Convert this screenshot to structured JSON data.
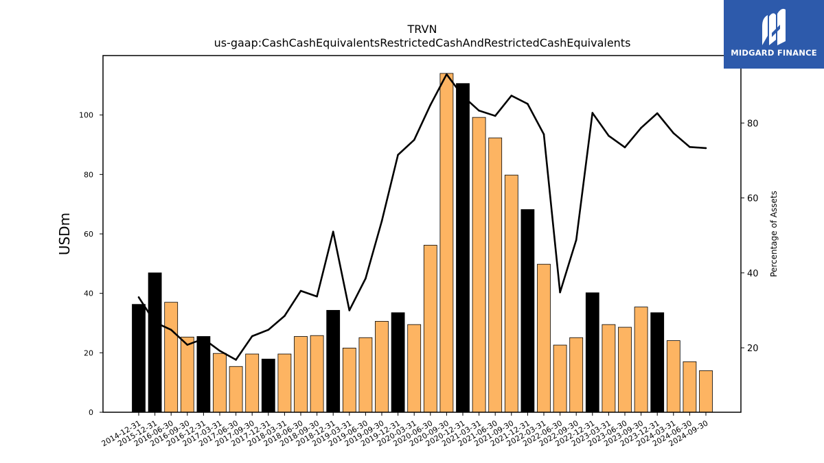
{
  "logo": {
    "text": "MIDGARD FINANCE",
    "icon": "midgard-m-icon",
    "bg_color": "#2d5aab"
  },
  "chart_data": {
    "type": "bar",
    "title": "TRVN",
    "subtitle": "us-gaap:CashCashEquivalentsRestrictedCashAndRestrictedCashEquivalents",
    "ylabel": "USDm",
    "ylabel_right": "Percentage of Assets",
    "ylim": [
      0,
      120
    ],
    "yticks": [
      0,
      20,
      40,
      60,
      80,
      100
    ],
    "ylim_right": [
      2.8,
      98
    ],
    "yticks_right": [
      20,
      40,
      60,
      80
    ],
    "categories": [
      "2014-12-31",
      "2015-12-31",
      "2016-06-30",
      "2016-09-30",
      "2016-12-31",
      "2017-03-31",
      "2017-06-30",
      "2017-09-30",
      "2017-12-31",
      "2018-03-31",
      "2018-06-30",
      "2018-09-30",
      "2018-12-31",
      "2019-03-31",
      "2019-06-30",
      "2019-09-30",
      "2019-12-31",
      "2020-03-31",
      "2020-06-30",
      "2020-09-30",
      "2020-12-31",
      "2021-03-31",
      "2021-06-30",
      "2021-09-30",
      "2021-12-31",
      "2022-03-31",
      "2022-06-30",
      "2022-09-30",
      "2022-12-31",
      "2023-03-31",
      "2023-06-30",
      "2023-09-30",
      "2023-12-31",
      "2024-03-31",
      "2024-06-30",
      "2024-09-30"
    ],
    "series": [
      {
        "type": "bar",
        "values": [
          36.3,
          46.9,
          37.0,
          25.3,
          25.5,
          19.8,
          15.4,
          19.6,
          17.9,
          19.6,
          25.5,
          25.8,
          34.3,
          21.6,
          25.1,
          30.6,
          33.5,
          29.5,
          56.2,
          114.0,
          110.6,
          99.2,
          92.3,
          79.8,
          68.2,
          49.8,
          22.6,
          25.1,
          40.2,
          29.5,
          28.6,
          35.4,
          33.5,
          24.1,
          17.0,
          14.0
        ],
        "highlight": [
          true,
          true,
          false,
          false,
          true,
          false,
          false,
          false,
          true,
          false,
          false,
          false,
          true,
          false,
          false,
          false,
          true,
          false,
          false,
          false,
          true,
          false,
          false,
          false,
          true,
          false,
          false,
          false,
          true,
          false,
          false,
          false,
          true,
          false,
          false,
          false
        ],
        "colors": {
          "normal": "#fdb462",
          "highlight": "#000000"
        }
      },
      {
        "type": "line",
        "axis": "right",
        "values": [
          33.5,
          26.8,
          24.8,
          20.8,
          22.4,
          19.2,
          16.8,
          23.1,
          24.8,
          28.5,
          35.2,
          33.7,
          51.0,
          30.0,
          38.5,
          53.8,
          71.5,
          75.5,
          84.8,
          93.0,
          87.2,
          83.3,
          81.9,
          87.3,
          85.1,
          77.0,
          34.8,
          48.8,
          82.7,
          76.6,
          73.5,
          78.7,
          82.6,
          77.3,
          73.6,
          73.3
        ],
        "color": "#000000"
      }
    ],
    "grid": false
  }
}
